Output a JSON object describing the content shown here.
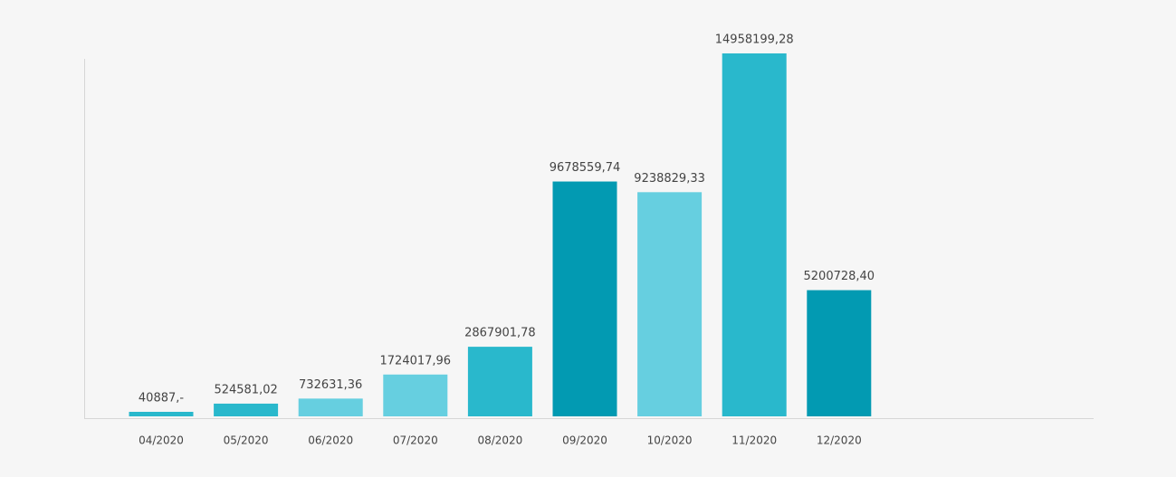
{
  "chart_data": {
    "type": "bar",
    "categories": [
      "04/2020",
      "05/2020",
      "06/2020",
      "07/2020",
      "08/2020",
      "09/2020",
      "10/2020",
      "11/2020",
      "12/2020"
    ],
    "values": [
      40887,
      524581.02,
      732631.36,
      1724017.96,
      2867901.78,
      9678559.74,
      9238829.33,
      14958199.28,
      5200728.4
    ],
    "value_labels": [
      "40887,-",
      "524581,02",
      "732631,36",
      "1724017,96",
      "2867901,78",
      "9678559,74",
      "9238829,33",
      "14958199,28",
      "5200728,40"
    ],
    "colors": [
      "#29b8cc",
      "#29b8cc",
      "#66cfe0",
      "#66cfe0",
      "#29b8cc",
      "#029ab2",
      "#66cfe0",
      "#29b8cc",
      "#029ab2"
    ]
  }
}
